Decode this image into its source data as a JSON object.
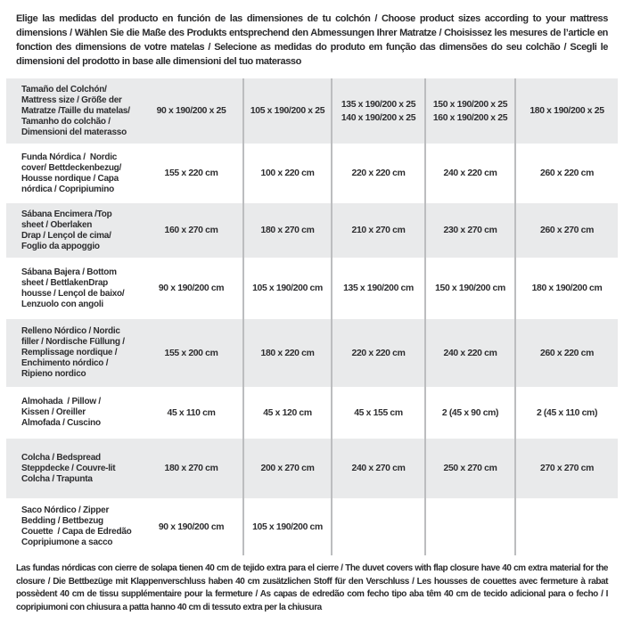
{
  "intro": "Elige las medidas del producto en función de las dimensiones de tu colchón / Choose product sizes according to your mattress dimensions / Wählen Sie die Maße des Produkts entsprechend den Abmessungen Ihrer Matratze / Choisissez les mesures de l’article en fonction des dimensions de votre matelas / Selecione as medidas do produto em função das dimensões do seu colchão / Scegli le dimensioni del prodotto in base alle dimensioni del tuo materasso",
  "footnote": "Las fundas nórdicas con cierre de solapa tienen 40 cm de tejido extra para el cierre  / The duvet covers with flap closure have 40 cm extra material for the closure / Die Bettbezüge mit Klappenverschluss haben 40 cm zusätzlichen Stoff für den Verschluss / Les housses de couettes avec fermeture à rabat possèdent 40 cm de tissu supplémentaire pour la fermeture / As capas de edredão com fecho tipo aba têm 40 cm de tecido adicional para o fecho / I copripiumoni con chiusura a patta hanno 40 cm di tessuto extra per la chiusura",
  "colors": {
    "background": "#ffffff",
    "row_stripe": "#e9eaeb",
    "divider": "#bcbdbf",
    "text": "#2d2d2f"
  },
  "table": {
    "rows": [
      {
        "label": "Tamaño del Colchón/\nMattress size / Größe der\nMatratze /Taille du matelas/\nTamanho do colchão /\nDimensioni del materasso",
        "values": [
          "90 x 190/200 x 25",
          "105 x 190/200 x 25",
          "135 x 190/200 x 25\n140 x 190/200 x 25",
          "150 x 190/200 x 25\n160 x 190/200 x 25",
          "180 x 190/200 x 25"
        ]
      },
      {
        "label": "Funda Nórdica /  Nordic\ncover/ Bettdeckenbezug/\nHousse nordique / Capa\nnórdica / Copripiumino",
        "values": [
          "155 x 220 cm",
          "100 x 220 cm",
          "220 x 220 cm",
          "240 x 220 cm",
          "260 x 220 cm"
        ]
      },
      {
        "label": "Sábana Encimera /Top\nsheet / Oberlaken\nDrap / Lençol de cima/\nFoglio da appoggio",
        "values": [
          "160 x 270 cm",
          "180 x 270 cm",
          "210 x 270 cm",
          "230 x 270 cm",
          "260 x 270 cm"
        ]
      },
      {
        "label": "Sábana Bajera / Bottom\nsheet / BettlakenDrap\nhousse / Lençol de baixo/\nLenzuolo con angoli",
        "values": [
          "90 x 190/200 cm",
          "105 x 190/200 cm",
          "135 x 190/200 cm",
          "150 x 190/200 cm",
          "180 x 190/200 cm"
        ]
      },
      {
        "label": "Relleno Nórdico / Nordic\nfiller / Nordische Füllung /\nRemplissage nordique /\nEnchimento nórdico /\nRipieno nordico",
        "values": [
          "155 x 200 cm",
          "180 x 220 cm",
          "220 x 220 cm",
          "240 x 220 cm",
          "260 x 220 cm"
        ]
      },
      {
        "label": "Almohada  / Pillow /\nKissen / Oreiller\nAlmofada / Cuscino",
        "values": [
          "45 x 110 cm",
          "45 x 120 cm",
          "45 x 155 cm",
          "2 (45 x 90 cm)",
          "2 (45 x 110 cm)"
        ]
      },
      {
        "label": "Colcha / Bedspread\nSteppdecke / Couvre-lit\nColcha / Trapunta",
        "values": [
          "180 x 270 cm",
          "200 x 270 cm",
          "240 x 270 cm",
          "250 x 270 cm",
          "270 x 270 cm"
        ]
      },
      {
        "label": "Saco Nórdico / Zipper\nBedding / Bettbezug\nCouette  / Capa de Edredão\nCopripiumone a sacco",
        "values": [
          "90 x 190/200 cm",
          "105 x 190/200 cm",
          "",
          "",
          ""
        ]
      }
    ]
  }
}
